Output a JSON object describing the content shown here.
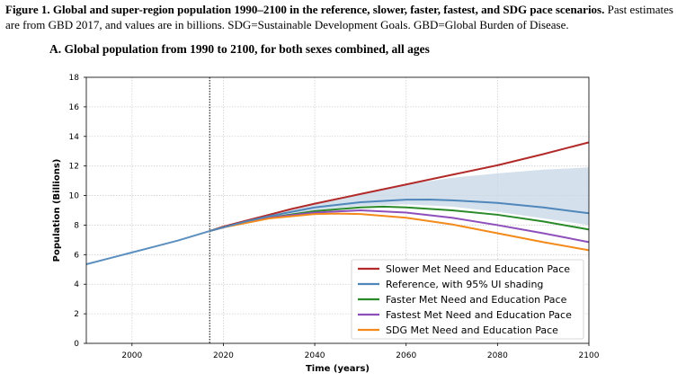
{
  "caption": {
    "bold": "Figure 1. Global and super-region population 1990–2100 in the reference, slower, faster, fastest, and SDG pace scenarios.",
    "rest": "Past estimates are from GBD 2017, and values are in billions. SDG=Sustainable Development Goals. GBD=Global Burden of Disease."
  },
  "panel_title": "A. Global population from 1990 to 2100, for both sexes combined, all ages",
  "chart_data": {
    "type": "line",
    "title": "A. Global population from 1990 to 2100, for both sexes combined, all ages",
    "xlabel": "Time (years)",
    "ylabel": "Population (Billions)",
    "xlim": [
      1990,
      2100
    ],
    "ylim": [
      0,
      18
    ],
    "xticks": [
      "2000",
      "2020",
      "2040",
      "2060",
      "2080",
      "2100"
    ],
    "yticks": [
      "0",
      "2",
      "4",
      "6",
      "8",
      "10",
      "12",
      "14",
      "16",
      "18"
    ],
    "grid": true,
    "vline": 2017,
    "legend_position": "bottom-right",
    "past": {
      "color": "#5b8fbf",
      "x": [
        1990,
        1995,
        2000,
        2005,
        2010,
        2017
      ],
      "y": [
        5.35,
        5.75,
        6.15,
        6.55,
        6.95,
        7.6
      ]
    },
    "series": [
      {
        "name": "Slower Met Need and Education Pace",
        "color": "#b22a2a",
        "x": [
          2017,
          2020,
          2025,
          2030,
          2035,
          2040,
          2050,
          2060,
          2070,
          2080,
          2090,
          2100
        ],
        "y": [
          7.6,
          7.9,
          8.3,
          8.7,
          9.1,
          9.45,
          10.1,
          10.75,
          11.4,
          12.05,
          12.8,
          13.6
        ]
      },
      {
        "name": "Reference, with 95% UI shading",
        "color": "#4f87bb",
        "x": [
          2017,
          2020,
          2025,
          2030,
          2035,
          2040,
          2050,
          2060,
          2065,
          2070,
          2080,
          2090,
          2100
        ],
        "y": [
          7.6,
          7.85,
          8.25,
          8.6,
          8.9,
          9.2,
          9.55,
          9.72,
          9.73,
          9.68,
          9.5,
          9.2,
          8.8
        ]
      },
      {
        "name": "Faster Met Need and Education Pace",
        "color": "#2a8a2a",
        "x": [
          2017,
          2020,
          2025,
          2030,
          2040,
          2050,
          2055,
          2060,
          2070,
          2080,
          2090,
          2100
        ],
        "y": [
          7.6,
          7.85,
          8.2,
          8.5,
          8.95,
          9.2,
          9.25,
          9.2,
          9.0,
          8.7,
          8.25,
          7.7
        ]
      },
      {
        "name": "Fastest Met Need and Education Pace",
        "color": "#8e4fbb",
        "x": [
          2017,
          2020,
          2025,
          2030,
          2040,
          2050,
          2060,
          2070,
          2080,
          2090,
          2100
        ],
        "y": [
          7.6,
          7.85,
          8.2,
          8.5,
          8.85,
          9.0,
          8.85,
          8.5,
          8.0,
          7.45,
          6.85
        ]
      },
      {
        "name": "SDG Met Need and Education Pace",
        "color": "#f38a1a",
        "x": [
          2017,
          2020,
          2025,
          2030,
          2040,
          2045,
          2050,
          2060,
          2070,
          2080,
          2090,
          2100
        ],
        "y": [
          7.6,
          7.85,
          8.15,
          8.45,
          8.75,
          8.78,
          8.75,
          8.5,
          8.05,
          7.45,
          6.85,
          6.3
        ]
      }
    ],
    "uncertainty": {
      "color": "#c5d7e7",
      "x": [
        2017,
        2025,
        2030,
        2040,
        2050,
        2060,
        2070,
        2080,
        2090,
        2100
      ],
      "upper": [
        7.6,
        8.3,
        8.75,
        9.5,
        10.15,
        10.75,
        11.2,
        11.5,
        11.75,
        11.9
      ],
      "lower": [
        7.6,
        8.25,
        8.55,
        9.0,
        9.3,
        9.4,
        9.25,
        8.9,
        8.45,
        8.0
      ]
    }
  }
}
